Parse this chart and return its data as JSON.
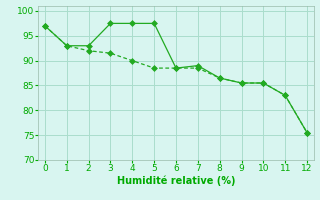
{
  "series1_x": [
    0,
    1,
    2,
    3,
    4,
    5,
    6,
    7,
    8,
    9,
    10,
    11,
    12
  ],
  "series1_y": [
    97,
    93,
    93,
    97.5,
    97.5,
    97.5,
    88.5,
    89,
    86.5,
    85.5,
    85.5,
    83,
    75.5
  ],
  "series2_x": [
    0,
    1,
    2,
    3,
    4,
    5,
    6,
    7,
    8,
    9,
    10,
    11,
    12
  ],
  "series2_y": [
    97,
    93,
    92,
    91.5,
    90,
    88.5,
    88.5,
    88.5,
    86.5,
    85.5,
    85.5,
    83,
    75.5
  ],
  "line_color": "#22aa22",
  "bg_color": "#d8f5f0",
  "grid_color": "#aaddcc",
  "xlabel": "Humidité relative (%)",
  "xlim": [
    -0.3,
    12.3
  ],
  "ylim": [
    70,
    101
  ],
  "yticks": [
    70,
    75,
    80,
    85,
    90,
    95,
    100
  ],
  "xticks": [
    0,
    1,
    2,
    3,
    4,
    5,
    6,
    7,
    8,
    9,
    10,
    11,
    12
  ],
  "xlabel_color": "#00aa00",
  "tick_color": "#00aa00",
  "xlabel_fontsize": 7,
  "tick_fontsize": 6.5
}
